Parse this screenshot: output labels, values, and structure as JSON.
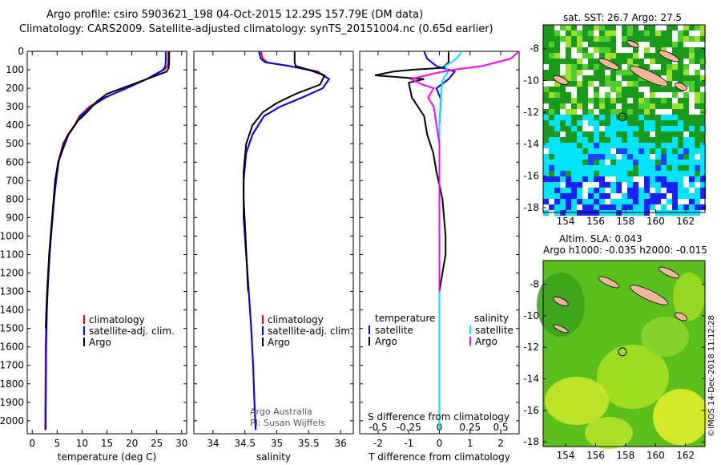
{
  "title": {
    "line1": "Argo profile: csiro 5903621_198 04-Oct-2015 12.29S 157.79E (DM data)",
    "line2": "Climatology: CARS2009. Satellite-adjusted climatology: synTS_20151004.nc (0.65d earlier)"
  },
  "colors": {
    "climatology": "#ff0000",
    "satellite": "#0000ff",
    "argo": "#000000",
    "sat_s": "#00e5ff",
    "argo_s": "#ff00ff"
  },
  "depth_ticks": [
    "0",
    "100",
    "200",
    "300",
    "400",
    "500",
    "600",
    "700",
    "800",
    "900",
    "1000",
    "1100",
    "1200",
    "1300",
    "1400",
    "1500",
    "1600",
    "1700",
    "1800",
    "1900",
    "2000"
  ],
  "panels": {
    "temperature": {
      "xlabel": "temperature (deg C)",
      "ticks": [
        "0",
        "5",
        "10",
        "15",
        "20",
        "25",
        "30"
      ],
      "legend": [
        "climatology",
        "satellite-adj. clim.",
        "Argo"
      ]
    },
    "salinity": {
      "xlabel": "salinity",
      "ticks": [
        "34",
        "34.5",
        "35",
        "35.5",
        "36"
      ],
      "legend": [
        "climatology",
        "satellite-adj. clim.",
        "Argo"
      ],
      "credit1": "Argo Australia",
      "credit2": "PI: Susan Wijffels"
    },
    "difference": {
      "xlabel": "T difference from climatology",
      "ticks": [
        "-2",
        "-1",
        "0",
        "1",
        "2"
      ],
      "s_ticks": [
        "-0.5",
        "-0.25",
        "0",
        "0.25",
        "0.5"
      ],
      "s_label": "S difference from climatology",
      "leg_t_title": "temperature",
      "leg_s_title": "salinity",
      "leg_sat": "satellite",
      "leg_argo": "Argo"
    }
  },
  "maps": {
    "sst": {
      "title": "sat. SST: 26.7 Argo: 27.5",
      "lat_ticks": [
        "-8",
        "-10",
        "-12",
        "-14",
        "-16",
        "-18"
      ],
      "lon_ticks": [
        "154",
        "156",
        "158",
        "160",
        "162"
      ]
    },
    "sla": {
      "title1": "Altim. SLA: 0.043",
      "title2": "Argo h1000: -0.035 h2000: -0.015",
      "lat_ticks": [
        "-8",
        "-10",
        "-12",
        "-14",
        "-16",
        "-18"
      ],
      "lon_ticks": [
        "154",
        "156",
        "158",
        "160",
        "162"
      ]
    }
  },
  "footer": "©IMOS 14-Dec-2018 11:12:28",
  "chart_data": [
    {
      "type": "line",
      "title": "temperature",
      "xlabel": "temperature (deg C)",
      "ylabel": "depth (dbar)",
      "xlim": [
        -1,
        31
      ],
      "ylim": [
        2070,
        0
      ],
      "series": [
        {
          "name": "climatology",
          "x": [
            27.3,
            27.3,
            27.2,
            26.5,
            23,
            19,
            14.5,
            11.5,
            9.5,
            8.5,
            7.2,
            6.2,
            5.2,
            4.7,
            4.3,
            4.0,
            3.7,
            3.4,
            3.2,
            3.0,
            2.85,
            2.7,
            2.6
          ],
          "y": [
            0,
            50,
            80,
            100,
            150,
            200,
            250,
            300,
            350,
            400,
            450,
            500,
            600,
            700,
            800,
            900,
            1000,
            1100,
            1200,
            1300,
            1400,
            1600,
            2050
          ]
        },
        {
          "name": "satellite-adj. clim.",
          "x": [
            26.8,
            26.8,
            26.7,
            26.3,
            23,
            18.8,
            14.7,
            11.8,
            9.7,
            8.6,
            7.3,
            6.3,
            5.3,
            4.8,
            4.4,
            4.1,
            3.8,
            3.5,
            3.3,
            3.1,
            2.95,
            2.8,
            2.7
          ],
          "y": [
            0,
            50,
            80,
            100,
            150,
            200,
            250,
            300,
            350,
            400,
            450,
            500,
            600,
            700,
            800,
            900,
            1000,
            1100,
            1200,
            1300,
            1400,
            1600,
            2050
          ]
        },
        {
          "name": "Argo",
          "x": [
            27.5,
            27.5,
            27.4,
            27.0,
            20,
            15,
            13,
            11,
            9,
            7.3,
            6.3,
            5.2,
            4.6,
            4.3,
            4.0,
            3.7,
            3.4,
            3.2,
            3.0,
            2.85,
            2.7
          ],
          "y": [
            0,
            50,
            90,
            110,
            180,
            230,
            270,
            330,
            380,
            450,
            520,
            600,
            700,
            800,
            900,
            1000,
            1100,
            1200,
            1300,
            1400,
            1500
          ]
        }
      ]
    },
    {
      "type": "line",
      "title": "salinity",
      "xlabel": "salinity",
      "ylabel": "depth (dbar)",
      "xlim": [
        33.7,
        36.2
      ],
      "ylim": [
        2070,
        0
      ],
      "series": [
        {
          "name": "climatology",
          "x": [
            34.75,
            34.78,
            34.85,
            35.2,
            35.65,
            35.82,
            35.72,
            35.4,
            35.05,
            34.8,
            34.62,
            34.52,
            34.48,
            34.48,
            34.52,
            34.56,
            34.6,
            34.63,
            34.65,
            34.67
          ],
          "y": [
            0,
            40,
            60,
            80,
            110,
            150,
            200,
            250,
            300,
            350,
            450,
            550,
            700,
            900,
            1100,
            1300,
            1500,
            1700,
            1900,
            2050
          ]
        },
        {
          "name": "satellite-adj. clim.",
          "x": [
            34.72,
            34.75,
            34.82,
            35.2,
            35.62,
            35.82,
            35.72,
            35.4,
            35.05,
            34.8,
            34.62,
            34.52,
            34.48,
            34.48,
            34.52,
            34.56,
            34.6,
            34.63,
            34.65,
            34.67
          ],
          "y": [
            0,
            40,
            60,
            80,
            110,
            150,
            200,
            250,
            300,
            350,
            450,
            550,
            700,
            900,
            1100,
            1300,
            1500,
            1700,
            1900,
            2050
          ]
        },
        {
          "name": "Argo",
          "x": [
            35.28,
            35.28,
            35.3,
            35.5,
            35.75,
            35.68,
            35.3,
            35.0,
            34.78,
            34.62,
            34.52,
            34.48,
            34.48,
            34.51,
            34.55
          ],
          "y": [
            0,
            60,
            80,
            100,
            130,
            180,
            230,
            280,
            330,
            400,
            500,
            650,
            800,
            1000,
            1300
          ]
        }
      ]
    },
    {
      "type": "line",
      "title": "T difference from climatology",
      "xlabel": "T difference from climatology",
      "ylabel": "depth (dbar)",
      "xlim": [
        -2.6,
        2.6
      ],
      "ylim": [
        2070,
        0
      ],
      "series": [
        {
          "name": "temperature satellite",
          "x": [
            -0.5,
            -0.4,
            -0.1,
            0.5,
            0.3,
            -0.1,
            0.05,
            0.0,
            0.0,
            0.0,
            0.0,
            0.0
          ],
          "y": [
            0,
            40,
            80,
            110,
            150,
            200,
            260,
            400,
            700,
            1200,
            1600,
            2050
          ]
        },
        {
          "name": "temperature Argo",
          "x": [
            0.3,
            0.3,
            0.1,
            -0.9,
            -1.5,
            -2.1,
            -0.5,
            -1.0,
            -0.9,
            -0.5,
            -0.4,
            -0.2,
            -0.1,
            0.1,
            0.2,
            0.2,
            0.1,
            0.0,
            0.0,
            0.0,
            0.0
          ],
          "y": [
            0,
            60,
            90,
            100,
            110,
            130,
            150,
            170,
            250,
            350,
            450,
            550,
            650,
            800,
            1000,
            1100,
            1200,
            1300,
            1400,
            1500,
            1550
          ]
        },
        {
          "name": "salinity satellite",
          "x": [
            0.8,
            0.6,
            0.2,
            0.3,
            0.1,
            0.05,
            0.0,
            0.0,
            0.0,
            0.0
          ],
          "y": [
            0,
            40,
            80,
            110,
            160,
            250,
            400,
            700,
            1200,
            2050
          ]
        },
        {
          "name": "salinity Argo",
          "x": [
            2.8,
            2.5,
            1.5,
            0.5,
            -0.2,
            -1.0,
            -0.6,
            -0.2,
            -0.4,
            -0.2,
            0.0,
            0.0,
            0.0,
            0.0
          ],
          "y": [
            0,
            40,
            80,
            100,
            120,
            150,
            180,
            200,
            250,
            300,
            500,
            800,
            1100,
            1300
          ]
        }
      ]
    }
  ]
}
